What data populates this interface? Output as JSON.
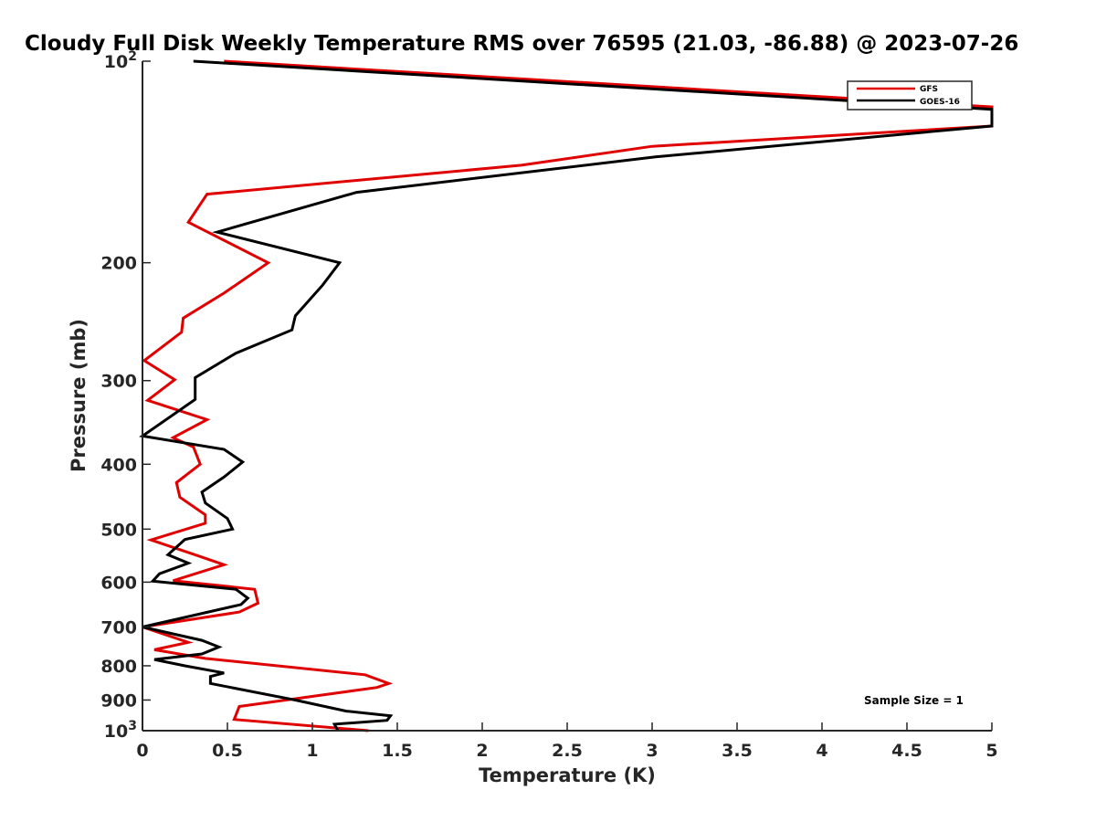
{
  "chart_data": {
    "type": "line",
    "title": "Cloudy Full Disk Weekly Temperature RMS over 76595 (21.03, -86.88) @ 2023-07-26",
    "xlabel": "Temperature (K)",
    "ylabel": "Pressure (mb)",
    "xlim": [
      0,
      5
    ],
    "ylim": [
      100,
      1000
    ],
    "yscale": "log",
    "y_reversed": true,
    "xticks": [
      0,
      0.5,
      1,
      1.5,
      2,
      2.5,
      3,
      3.5,
      4,
      4.5,
      5
    ],
    "xtick_labels": [
      "0",
      "0.5",
      "1",
      "1.5",
      "2",
      "2.5",
      "3",
      "3.5",
      "4",
      "4.5",
      "5"
    ],
    "yticks": [
      100,
      200,
      300,
      400,
      500,
      600,
      700,
      800,
      900,
      1000
    ],
    "ytick_labels": [
      {
        "base": "10",
        "exp": "2"
      },
      {
        "base": "200",
        "exp": ""
      },
      {
        "base": "300",
        "exp": ""
      },
      {
        "base": "400",
        "exp": ""
      },
      {
        "base": "500",
        "exp": ""
      },
      {
        "base": "600",
        "exp": ""
      },
      {
        "base": "700",
        "exp": ""
      },
      {
        "base": "800",
        "exp": ""
      },
      {
        "base": "900",
        "exp": ""
      },
      {
        "base": "10",
        "exp": "3"
      }
    ],
    "legend_position": "top-right",
    "annotation": "Sample Size = 1",
    "series": [
      {
        "name": "GFS",
        "color": "#e00000",
        "points": [
          [
            0.48,
            100
          ],
          [
            5.0,
            117
          ],
          [
            5.0,
            125
          ],
          [
            3.0,
            134
          ],
          [
            2.23,
            143
          ],
          [
            0.38,
            158
          ],
          [
            0.27,
            174
          ],
          [
            0.74,
            200
          ],
          [
            0.48,
            222
          ],
          [
            0.24,
            242
          ],
          [
            0.23,
            254
          ],
          [
            0.01,
            280
          ],
          [
            0.19,
            299
          ],
          [
            0.03,
            321
          ],
          [
            0.38,
            343
          ],
          [
            0.18,
            365
          ],
          [
            0.3,
            377
          ],
          [
            0.34,
            400
          ],
          [
            0.2,
            426
          ],
          [
            0.22,
            448
          ],
          [
            0.37,
            476
          ],
          [
            0.37,
            490
          ],
          [
            0.05,
            519
          ],
          [
            0.3,
            545
          ],
          [
            0.48,
            565
          ],
          [
            0.18,
            597
          ],
          [
            0.66,
            615
          ],
          [
            0.68,
            645
          ],
          [
            0.57,
            665
          ],
          [
            0.0,
            700
          ],
          [
            0.27,
            738
          ],
          [
            0.07,
            757
          ],
          [
            0.37,
            780
          ],
          [
            1.31,
            825
          ],
          [
            1.45,
            850
          ],
          [
            1.38,
            862
          ],
          [
            0.57,
            920
          ],
          [
            0.54,
            962
          ],
          [
            1.33,
            1000
          ]
        ]
      },
      {
        "name": "GOES-16",
        "color": "#000000",
        "points": [
          [
            0.3,
            100
          ],
          [
            5.0,
            118
          ],
          [
            5.0,
            125
          ],
          [
            3.02,
            139
          ],
          [
            1.26,
            157
          ],
          [
            0.44,
            180
          ],
          [
            1.16,
            200
          ],
          [
            1.06,
            216
          ],
          [
            0.9,
            240
          ],
          [
            0.88,
            252
          ],
          [
            0.55,
            273
          ],
          [
            0.31,
            297
          ],
          [
            0.31,
            320
          ],
          [
            0.0,
            363
          ],
          [
            0.48,
            380
          ],
          [
            0.59,
            397
          ],
          [
            0.48,
            418
          ],
          [
            0.35,
            440
          ],
          [
            0.37,
            457
          ],
          [
            0.5,
            482
          ],
          [
            0.53,
            500
          ],
          [
            0.25,
            518
          ],
          [
            0.15,
            546
          ],
          [
            0.27,
            562
          ],
          [
            0.1,
            583
          ],
          [
            0.06,
            598
          ],
          [
            0.55,
            615
          ],
          [
            0.62,
            634
          ],
          [
            0.58,
            648
          ],
          [
            0.0,
            700
          ],
          [
            0.35,
            733
          ],
          [
            0.45,
            750
          ],
          [
            0.35,
            768
          ],
          [
            0.07,
            783
          ],
          [
            0.25,
            800
          ],
          [
            0.48,
            820
          ],
          [
            0.4,
            830
          ],
          [
            0.4,
            850
          ],
          [
            0.9,
            900
          ],
          [
            1.2,
            935
          ],
          [
            1.46,
            950
          ],
          [
            1.44,
            965
          ],
          [
            1.13,
            978
          ],
          [
            1.15,
            1000
          ]
        ]
      }
    ]
  }
}
